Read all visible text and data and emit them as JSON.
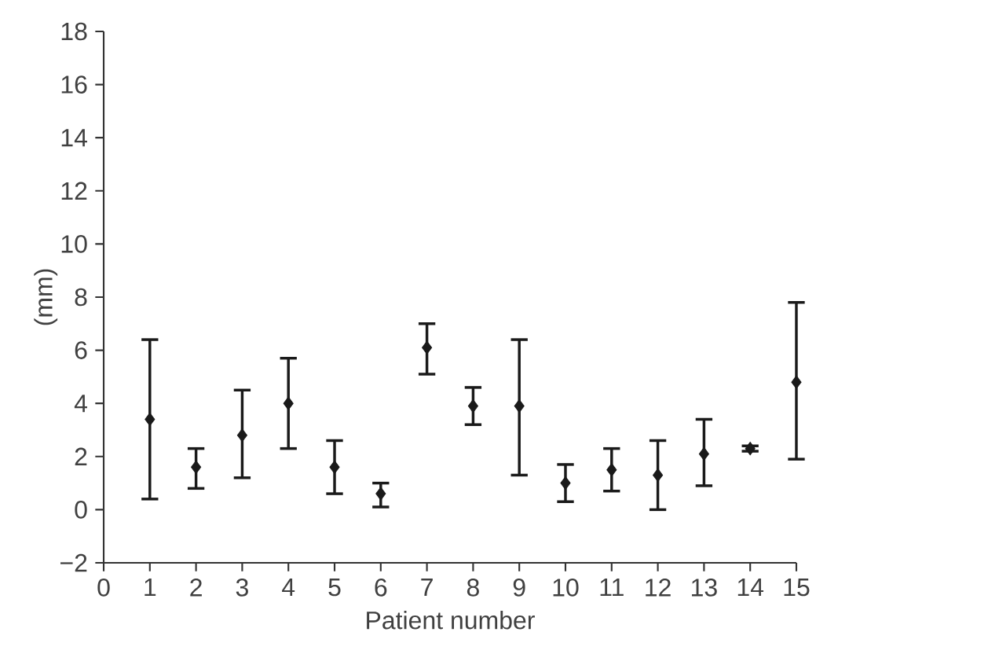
{
  "chart_data": {
    "type": "scatter",
    "xlabel": "Patient number",
    "ylabel": "(mm)",
    "x": [
      1,
      2,
      3,
      4,
      5,
      6,
      7,
      8,
      9,
      10,
      11,
      12,
      13,
      14,
      15
    ],
    "values": [
      3.4,
      1.6,
      2.8,
      4.0,
      1.6,
      0.6,
      6.1,
      3.9,
      3.9,
      1.0,
      1.5,
      1.3,
      2.1,
      2.3,
      4.8
    ],
    "errors": [
      [
        0.4,
        6.4
      ],
      [
        0.8,
        2.3
      ],
      [
        1.2,
        4.5
      ],
      [
        2.3,
        5.7
      ],
      [
        0.6,
        2.6
      ],
      [
        0.1,
        1.0
      ],
      [
        5.1,
        7.0
      ],
      [
        3.2,
        4.6
      ],
      [
        1.3,
        6.4
      ],
      [
        0.3,
        1.7
      ],
      [
        0.7,
        2.3
      ],
      [
        0.0,
        2.6
      ],
      [
        0.9,
        3.4
      ],
      [
        2.2,
        2.4
      ],
      [
        1.9,
        7.8
      ]
    ],
    "color": "#1a1a1a",
    "marker": "diamond",
    "xlim": [
      0,
      15
    ],
    "xticks": [
      0,
      1,
      2,
      3,
      4,
      5,
      6,
      7,
      8,
      9,
      10,
      11,
      12,
      13,
      14,
      15
    ],
    "ylim": [
      -2,
      18
    ],
    "yticks": [
      {
        "value": -2,
        "label": "−2"
      },
      0,
      2,
      4,
      6,
      8,
      10,
      12,
      14,
      16,
      18
    ]
  }
}
